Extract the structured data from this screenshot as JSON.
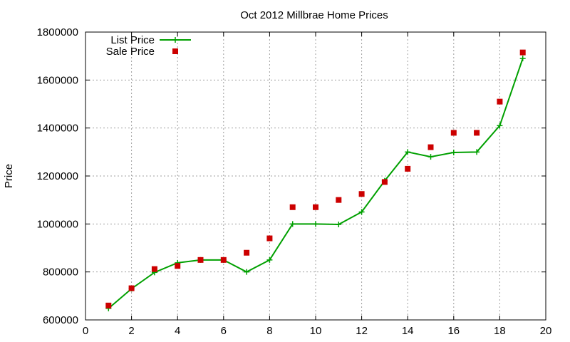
{
  "chart_data": {
    "type": "line",
    "title": "Oct 2012 Millbrae Home Prices",
    "xlabel": "",
    "ylabel": "Price",
    "xlim": [
      0,
      20
    ],
    "ylim": [
      600000,
      1800000
    ],
    "xticks": [
      "0",
      "2",
      "4",
      "6",
      "8",
      "10",
      "12",
      "14",
      "16",
      "18",
      "20"
    ],
    "yticks": [
      "600000",
      "800000",
      "1000000",
      "1200000",
      "1400000",
      "1600000",
      "1800000"
    ],
    "grid": true,
    "legend_position": "top-left",
    "series": [
      {
        "name": "List Price",
        "style": "line-with-plus-markers",
        "color": "#00a000",
        "x": [
          1,
          2,
          3,
          4,
          5,
          6,
          7,
          8,
          9,
          10,
          11,
          12,
          13,
          14,
          15,
          16,
          17,
          18,
          19
        ],
        "values": [
          648000,
          730000,
          798000,
          838000,
          850000,
          850000,
          800000,
          850000,
          1000000,
          1000000,
          998000,
          1050000,
          1180000,
          1300000,
          1280000,
          1298000,
          1300000,
          1410000,
          1690000
        ]
      },
      {
        "name": "Sale Price",
        "style": "square-markers",
        "color": "#cc0000",
        "x": [
          1,
          2,
          3,
          4,
          5,
          6,
          7,
          8,
          9,
          10,
          11,
          12,
          13,
          14,
          15,
          16,
          17,
          18,
          19
        ],
        "values": [
          660000,
          732000,
          812000,
          825000,
          850000,
          850000,
          880000,
          940000,
          1070000,
          1070000,
          1100000,
          1125000,
          1175000,
          1230000,
          1320000,
          1380000,
          1380000,
          1510000,
          1715000
        ]
      }
    ]
  }
}
